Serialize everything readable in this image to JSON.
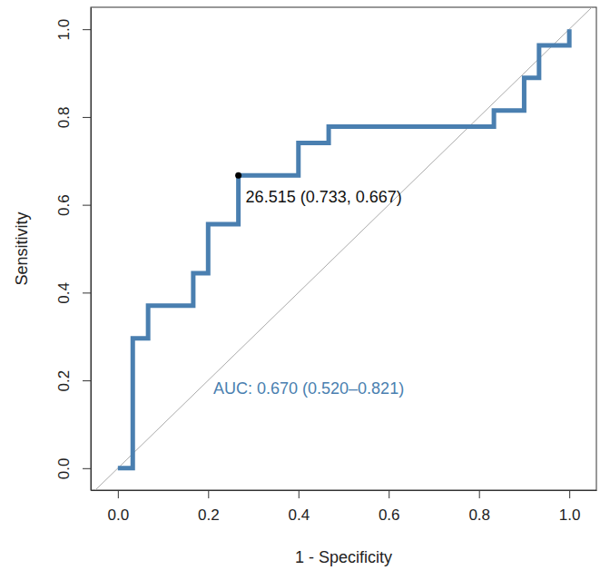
{
  "chart_data": {
    "type": "line",
    "x_label": "1 - Specificity",
    "y_label": "Sensitivity",
    "xlim": [
      -0.06,
      1.06
    ],
    "ylim": [
      -0.05,
      1.05
    ],
    "xticks": [
      {
        "value": 0,
        "label": "0.0"
      },
      {
        "value": 0.2,
        "label": "0.2"
      },
      {
        "value": 0.4,
        "label": "0.4"
      },
      {
        "value": 0.6,
        "label": "0.6"
      },
      {
        "value": 0.8,
        "label": "0.8"
      },
      {
        "value": 1,
        "label": "1.0"
      }
    ],
    "yticks": [
      {
        "value": 0,
        "label": "0.0"
      },
      {
        "value": 0.2,
        "label": "0.2"
      },
      {
        "value": 0.4,
        "label": "0.4"
      },
      {
        "value": 0.6,
        "label": "0.6"
      },
      {
        "value": 0.8,
        "label": "0.8"
      },
      {
        "value": 1,
        "label": "1.0"
      }
    ],
    "grid": false,
    "series": [
      {
        "color": "#4a7fb0",
        "line_style": "solid",
        "x": [
          0,
          0.033,
          0.033,
          0.067,
          0.067,
          0.167,
          0.167,
          0.2,
          0.2,
          0.267,
          0.267,
          0.4,
          0.4,
          0.467,
          0.467,
          0.833,
          0.833,
          0.9,
          0.9,
          0.933,
          0.933,
          1.0,
          1.0
        ],
        "values": [
          0,
          0,
          0.296,
          0.296,
          0.37,
          0.37,
          0.444,
          0.444,
          0.556,
          0.556,
          0.667,
          0.667,
          0.741,
          0.741,
          0.778,
          0.778,
          0.815,
          0.815,
          0.889,
          0.889,
          0.963,
          0.963,
          1.0
        ]
      }
    ],
    "best_point": {
      "x": 0.267,
      "y": 0.667,
      "label": "26.515 (0.733, 0.667)",
      "color": "#000000"
    },
    "auc_label": "AUC: 0.670 (0.520–0.821)"
  }
}
